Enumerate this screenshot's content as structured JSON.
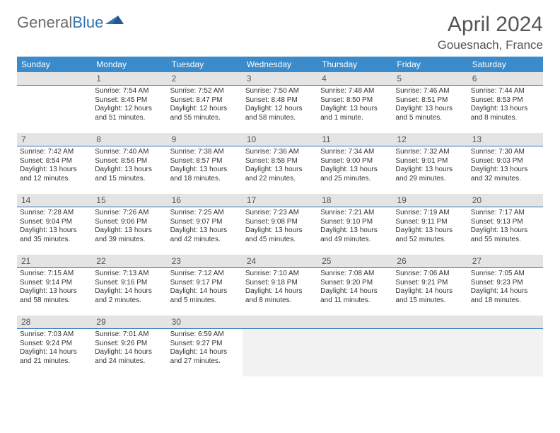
{
  "brand": {
    "part1": "General",
    "part2": "Blue"
  },
  "title": "April 2024",
  "location": "Gouesnach, France",
  "colors": {
    "header_bg": "#3b8bca",
    "rule": "#2f74b5",
    "daynum_bg": "#e4e4e4",
    "trailing_bg": "#f2f2f2"
  },
  "weekdays": [
    "Sunday",
    "Monday",
    "Tuesday",
    "Wednesday",
    "Thursday",
    "Friday",
    "Saturday"
  ],
  "weeks": [
    [
      {
        "n": "",
        "lines": []
      },
      {
        "n": "1",
        "lines": [
          "Sunrise: 7:54 AM",
          "Sunset: 8:45 PM",
          "Daylight: 12 hours",
          "and 51 minutes."
        ]
      },
      {
        "n": "2",
        "lines": [
          "Sunrise: 7:52 AM",
          "Sunset: 8:47 PM",
          "Daylight: 12 hours",
          "and 55 minutes."
        ]
      },
      {
        "n": "3",
        "lines": [
          "Sunrise: 7:50 AM",
          "Sunset: 8:48 PM",
          "Daylight: 12 hours",
          "and 58 minutes."
        ]
      },
      {
        "n": "4",
        "lines": [
          "Sunrise: 7:48 AM",
          "Sunset: 8:50 PM",
          "Daylight: 13 hours",
          "and 1 minute."
        ]
      },
      {
        "n": "5",
        "lines": [
          "Sunrise: 7:46 AM",
          "Sunset: 8:51 PM",
          "Daylight: 13 hours",
          "and 5 minutes."
        ]
      },
      {
        "n": "6",
        "lines": [
          "Sunrise: 7:44 AM",
          "Sunset: 8:53 PM",
          "Daylight: 13 hours",
          "and 8 minutes."
        ]
      }
    ],
    [
      {
        "n": "7",
        "lines": [
          "Sunrise: 7:42 AM",
          "Sunset: 8:54 PM",
          "Daylight: 13 hours",
          "and 12 minutes."
        ]
      },
      {
        "n": "8",
        "lines": [
          "Sunrise: 7:40 AM",
          "Sunset: 8:56 PM",
          "Daylight: 13 hours",
          "and 15 minutes."
        ]
      },
      {
        "n": "9",
        "lines": [
          "Sunrise: 7:38 AM",
          "Sunset: 8:57 PM",
          "Daylight: 13 hours",
          "and 18 minutes."
        ]
      },
      {
        "n": "10",
        "lines": [
          "Sunrise: 7:36 AM",
          "Sunset: 8:58 PM",
          "Daylight: 13 hours",
          "and 22 minutes."
        ]
      },
      {
        "n": "11",
        "lines": [
          "Sunrise: 7:34 AM",
          "Sunset: 9:00 PM",
          "Daylight: 13 hours",
          "and 25 minutes."
        ]
      },
      {
        "n": "12",
        "lines": [
          "Sunrise: 7:32 AM",
          "Sunset: 9:01 PM",
          "Daylight: 13 hours",
          "and 29 minutes."
        ]
      },
      {
        "n": "13",
        "lines": [
          "Sunrise: 7:30 AM",
          "Sunset: 9:03 PM",
          "Daylight: 13 hours",
          "and 32 minutes."
        ]
      }
    ],
    [
      {
        "n": "14",
        "lines": [
          "Sunrise: 7:28 AM",
          "Sunset: 9:04 PM",
          "Daylight: 13 hours",
          "and 35 minutes."
        ]
      },
      {
        "n": "15",
        "lines": [
          "Sunrise: 7:26 AM",
          "Sunset: 9:06 PM",
          "Daylight: 13 hours",
          "and 39 minutes."
        ]
      },
      {
        "n": "16",
        "lines": [
          "Sunrise: 7:25 AM",
          "Sunset: 9:07 PM",
          "Daylight: 13 hours",
          "and 42 minutes."
        ]
      },
      {
        "n": "17",
        "lines": [
          "Sunrise: 7:23 AM",
          "Sunset: 9:08 PM",
          "Daylight: 13 hours",
          "and 45 minutes."
        ]
      },
      {
        "n": "18",
        "lines": [
          "Sunrise: 7:21 AM",
          "Sunset: 9:10 PM",
          "Daylight: 13 hours",
          "and 49 minutes."
        ]
      },
      {
        "n": "19",
        "lines": [
          "Sunrise: 7:19 AM",
          "Sunset: 9:11 PM",
          "Daylight: 13 hours",
          "and 52 minutes."
        ]
      },
      {
        "n": "20",
        "lines": [
          "Sunrise: 7:17 AM",
          "Sunset: 9:13 PM",
          "Daylight: 13 hours",
          "and 55 minutes."
        ]
      }
    ],
    [
      {
        "n": "21",
        "lines": [
          "Sunrise: 7:15 AM",
          "Sunset: 9:14 PM",
          "Daylight: 13 hours",
          "and 58 minutes."
        ]
      },
      {
        "n": "22",
        "lines": [
          "Sunrise: 7:13 AM",
          "Sunset: 9:16 PM",
          "Daylight: 14 hours",
          "and 2 minutes."
        ]
      },
      {
        "n": "23",
        "lines": [
          "Sunrise: 7:12 AM",
          "Sunset: 9:17 PM",
          "Daylight: 14 hours",
          "and 5 minutes."
        ]
      },
      {
        "n": "24",
        "lines": [
          "Sunrise: 7:10 AM",
          "Sunset: 9:18 PM",
          "Daylight: 14 hours",
          "and 8 minutes."
        ]
      },
      {
        "n": "25",
        "lines": [
          "Sunrise: 7:08 AM",
          "Sunset: 9:20 PM",
          "Daylight: 14 hours",
          "and 11 minutes."
        ]
      },
      {
        "n": "26",
        "lines": [
          "Sunrise: 7:06 AM",
          "Sunset: 9:21 PM",
          "Daylight: 14 hours",
          "and 15 minutes."
        ]
      },
      {
        "n": "27",
        "lines": [
          "Sunrise: 7:05 AM",
          "Sunset: 9:23 PM",
          "Daylight: 14 hours",
          "and 18 minutes."
        ]
      }
    ],
    [
      {
        "n": "28",
        "lines": [
          "Sunrise: 7:03 AM",
          "Sunset: 9:24 PM",
          "Daylight: 14 hours",
          "and 21 minutes."
        ]
      },
      {
        "n": "29",
        "lines": [
          "Sunrise: 7:01 AM",
          "Sunset: 9:26 PM",
          "Daylight: 14 hours",
          "and 24 minutes."
        ]
      },
      {
        "n": "30",
        "lines": [
          "Sunrise: 6:59 AM",
          "Sunset: 9:27 PM",
          "Daylight: 14 hours",
          "and 27 minutes."
        ]
      },
      {
        "n": "",
        "lines": [],
        "trailing": true
      },
      {
        "n": "",
        "lines": [],
        "trailing": true
      },
      {
        "n": "",
        "lines": [],
        "trailing": true
      },
      {
        "n": "",
        "lines": [],
        "trailing": true
      }
    ]
  ]
}
